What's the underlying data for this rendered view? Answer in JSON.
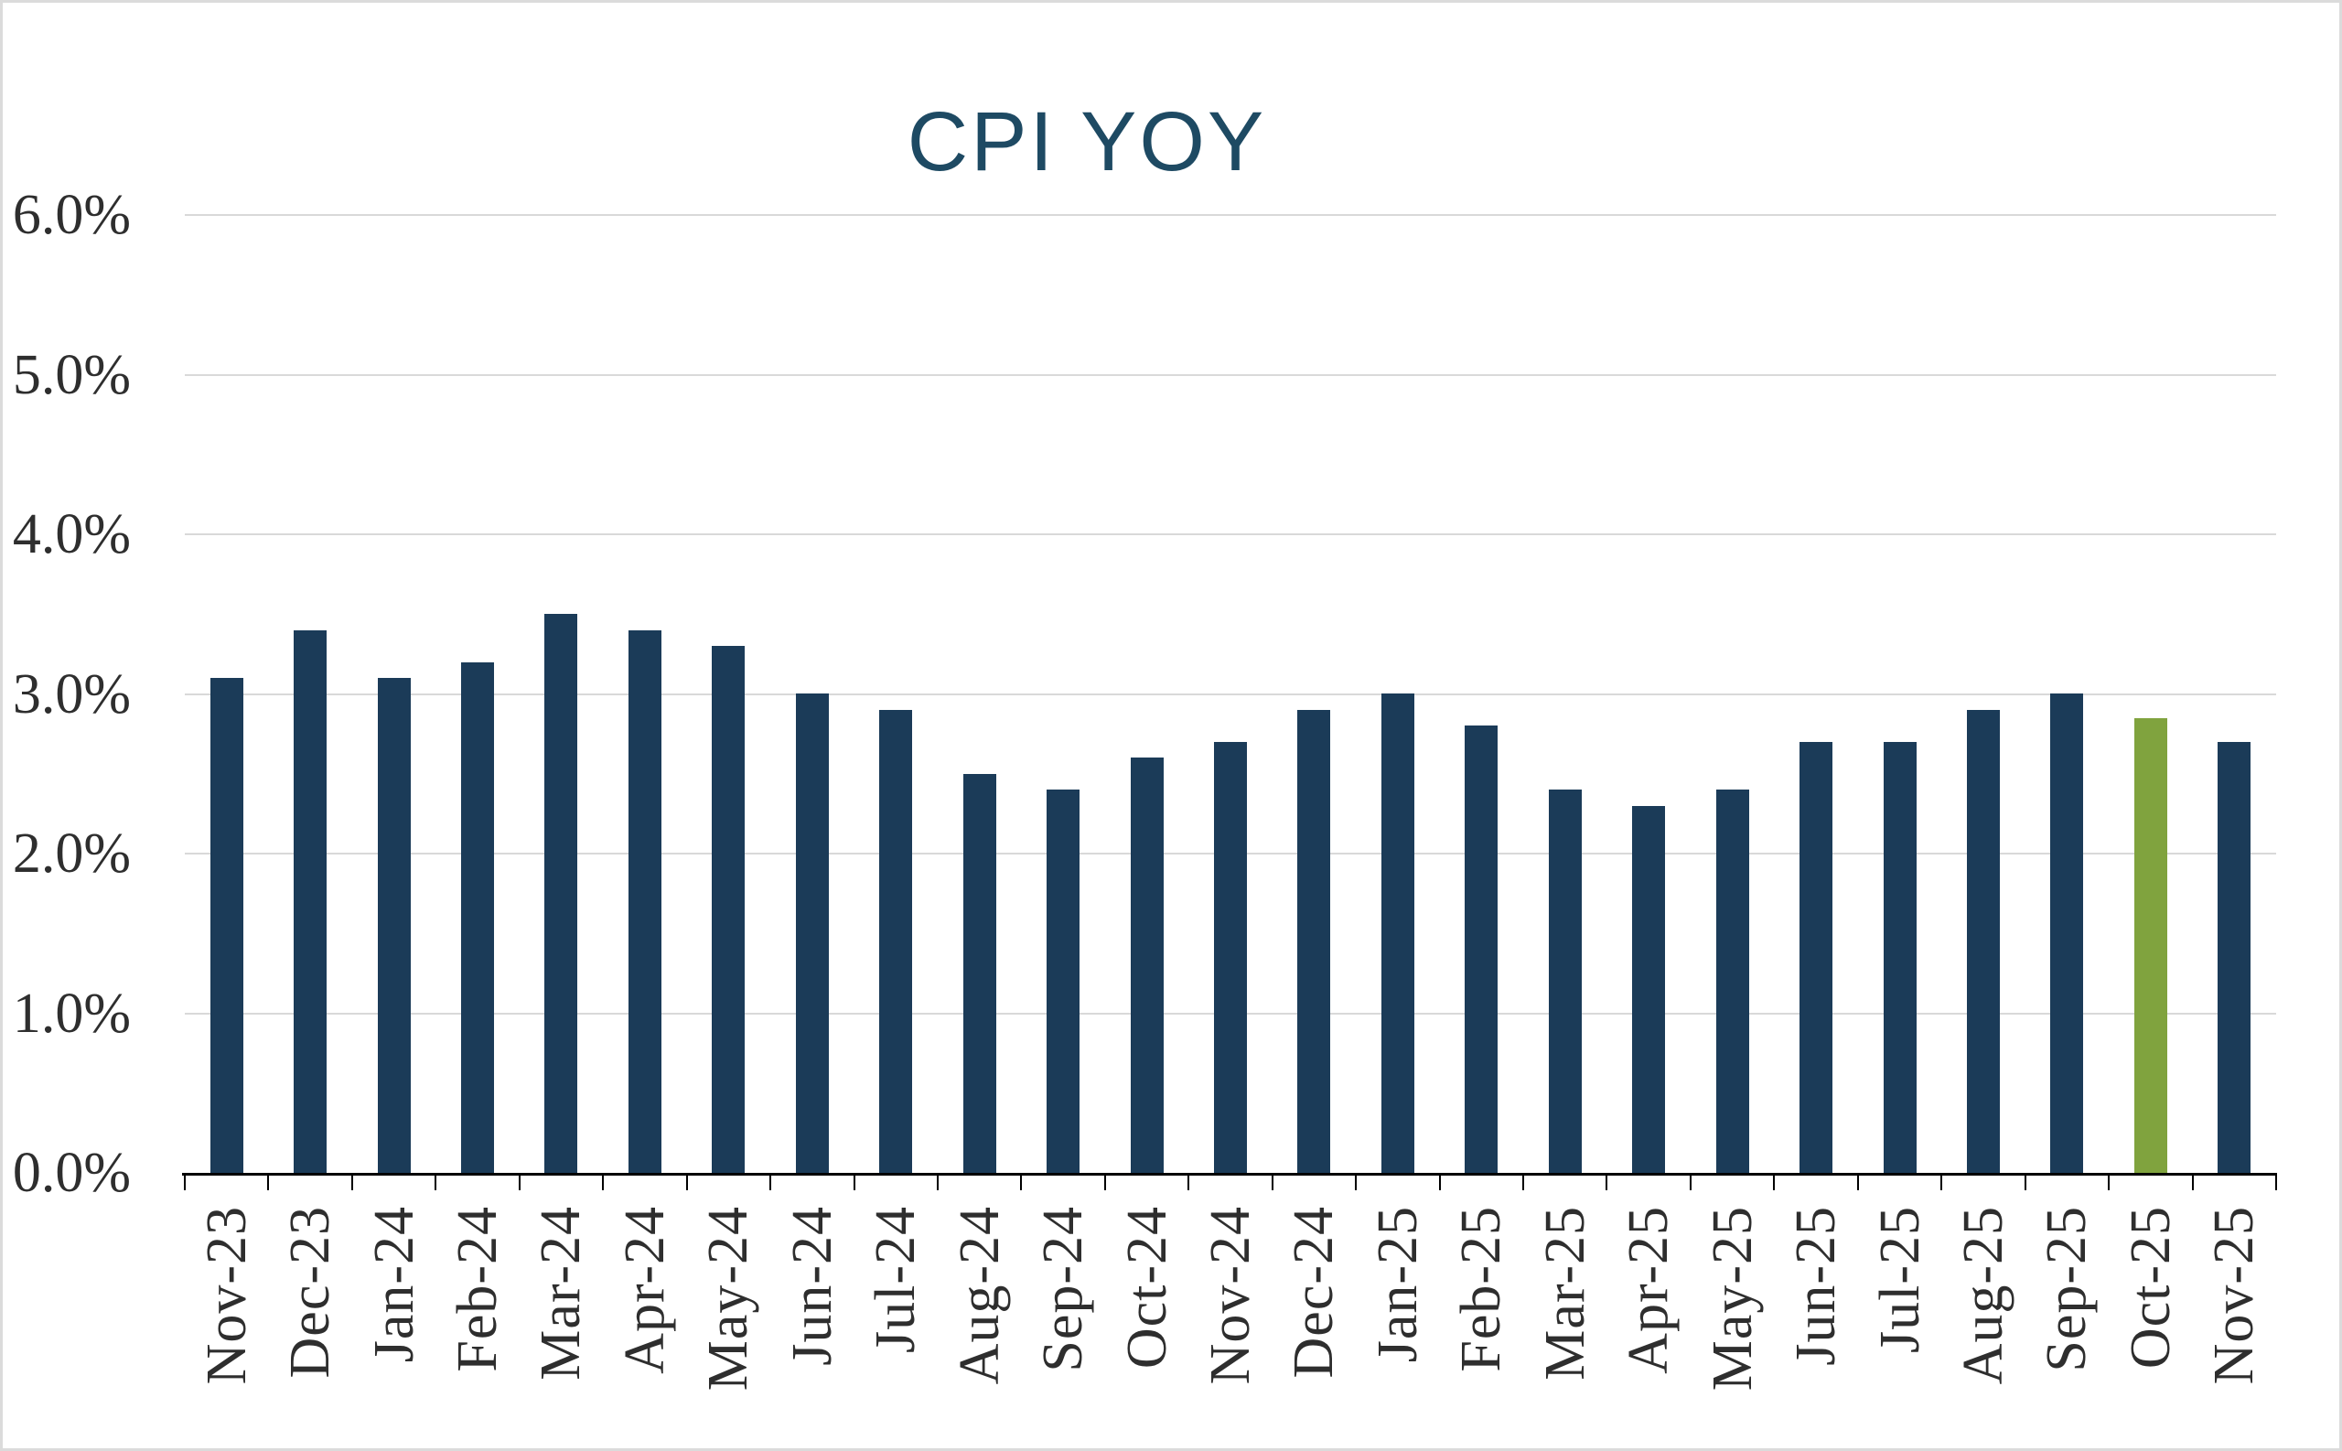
{
  "title": {
    "text": "CPI YOY"
  },
  "colors": {
    "title": "#1E4A63",
    "bar": "#1B3B58",
    "highlight_bar": "#80A33E",
    "gridline": "#D9D9D9",
    "axis": "#000000",
    "tick_text": "#2E2E2E"
  },
  "chart_data": {
    "type": "bar",
    "title": "CPI YOY",
    "categories": [
      "Nov-23",
      "Dec-23",
      "Jan-24",
      "Feb-24",
      "Mar-24",
      "Apr-24",
      "May-24",
      "Jun-24",
      "Jul-24",
      "Aug-24",
      "Sep-24",
      "Oct-24",
      "Nov-24",
      "Dec-24",
      "Jan-25",
      "Feb-25",
      "Mar-25",
      "Apr-25",
      "May-25",
      "Jun-25",
      "Jul-25",
      "Aug-25",
      "Sep-25",
      "Oct-25",
      "Nov-25"
    ],
    "values": [
      3.1,
      3.4,
      3.1,
      3.2,
      3.5,
      3.4,
      3.3,
      3.0,
      2.9,
      2.5,
      2.4,
      2.6,
      2.7,
      2.9,
      3.0,
      2.8,
      2.4,
      2.3,
      2.4,
      2.7,
      2.7,
      2.9,
      3.0,
      2.85,
      2.7
    ],
    "highlight_category": "Oct-25",
    "y_tick_labels": [
      "0.0%",
      "1.0%",
      "2.0%",
      "3.0%",
      "4.0%",
      "5.0%",
      "6.0%"
    ],
    "xlabel": "",
    "ylabel": "",
    "ylim": [
      0,
      6
    ],
    "y_tick_step": 1.0,
    "grid": true,
    "legend": false
  }
}
